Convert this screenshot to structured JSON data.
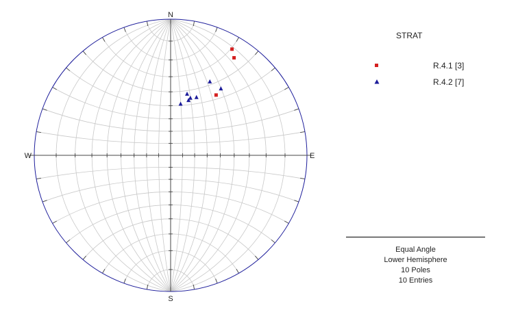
{
  "chart_data": {
    "type": "scatter",
    "projection": "Equal Angle",
    "hemisphere": "Lower Hemisphere",
    "directions": {
      "north": "N",
      "south": "S",
      "east": "E",
      "west": "W"
    },
    "grid": true,
    "grid_interval_deg": 10,
    "legend_title": "STRAT",
    "legend_position": "top-right",
    "series": [
      {
        "name": "R.4.1 [3]",
        "marker": "square",
        "color": "#d42020",
        "points": [
          {
            "trend": 30,
            "plunge": 6
          },
          {
            "trend": 33,
            "plunge": 9
          },
          {
            "trend": 37,
            "plunge": 32
          }
        ]
      },
      {
        "name": "R.4.2 [7]",
        "marker": "triangle",
        "color": "#1c1c9a",
        "points": [
          {
            "trend": 28,
            "plunge": 27
          },
          {
            "trend": 15,
            "plunge": 40
          },
          {
            "trend": 37,
            "plunge": 27
          },
          {
            "trend": 24,
            "plunge": 40
          },
          {
            "trend": 19,
            "plunge": 42
          },
          {
            "trend": 18,
            "plunge": 44
          },
          {
            "trend": 11,
            "plunge": 48
          }
        ]
      }
    ],
    "summary": [
      "Equal Angle",
      "Lower Hemisphere",
      "10 Poles",
      "10 Entries"
    ]
  },
  "colors": {
    "primitive": "#1c1c9a",
    "grid": "#c8c8c8",
    "axes": "#444444"
  }
}
